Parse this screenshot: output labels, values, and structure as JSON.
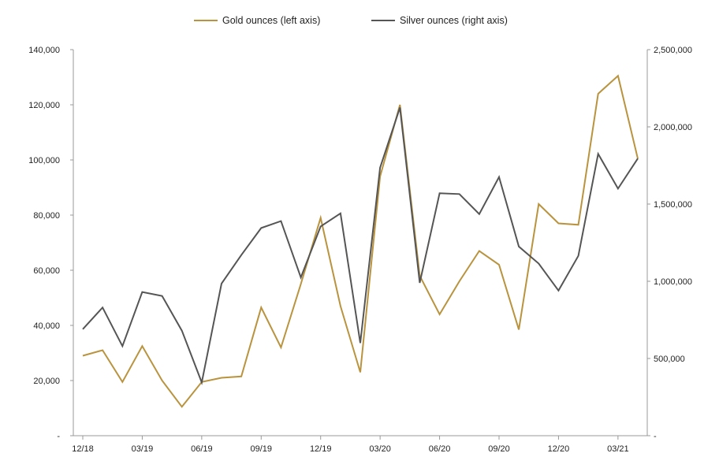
{
  "chart_data": {
    "type": "line",
    "legend_position": "top-center",
    "grid": false,
    "x": [
      "12/18",
      "01/19",
      "02/19",
      "03/19",
      "04/19",
      "05/19",
      "06/19",
      "07/19",
      "08/19",
      "09/19",
      "10/19",
      "11/19",
      "12/19",
      "01/20",
      "02/20",
      "03/20",
      "04/20",
      "05/20",
      "06/20",
      "07/20",
      "08/20",
      "09/20",
      "10/20",
      "11/20",
      "12/20",
      "01/21",
      "02/21",
      "03/21",
      "04/21"
    ],
    "xtick_labels": [
      "12/18",
      "03/19",
      "06/19",
      "09/19",
      "12/19",
      "03/20",
      "06/20",
      "09/20",
      "12/20",
      "03/21"
    ],
    "left_axis": {
      "ylim": [
        0,
        140000
      ],
      "tick_labels": [
        "-",
        "20,000",
        "40,000",
        "60,000",
        "80,000",
        "100,000",
        "120,000",
        "140,000"
      ]
    },
    "right_axis": {
      "ylim": [
        0,
        2500000
      ],
      "tick_labels": [
        "-",
        "500,000",
        "1,000,000",
        "1,500,000",
        "2,000,000",
        "2,500,000"
      ]
    },
    "series": [
      {
        "name": "Gold ounces (left axis)",
        "axis": "left",
        "color": "#b9933e",
        "values": [
          29000,
          31000,
          19500,
          32500,
          20000,
          10500,
          19500,
          21000,
          21500,
          46500,
          32000,
          55000,
          79000,
          47000,
          23000,
          94000,
          120000,
          58000,
          44000,
          56000,
          67000,
          62000,
          38500,
          84000,
          77000,
          76500,
          124000,
          130500,
          100500
        ]
      },
      {
        "name": "Silver ounces (right axis)",
        "axis": "right",
        "color": "#555555",
        "values": [
          690000,
          830000,
          580000,
          930000,
          905000,
          680000,
          345000,
          985000,
          1170000,
          1345000,
          1390000,
          1025000,
          1355000,
          1440000,
          600000,
          1735000,
          2125000,
          990000,
          1570000,
          1565000,
          1435000,
          1675000,
          1225000,
          1115000,
          940000,
          1165000,
          1825000,
          1600000,
          1795000
        ]
      }
    ]
  }
}
